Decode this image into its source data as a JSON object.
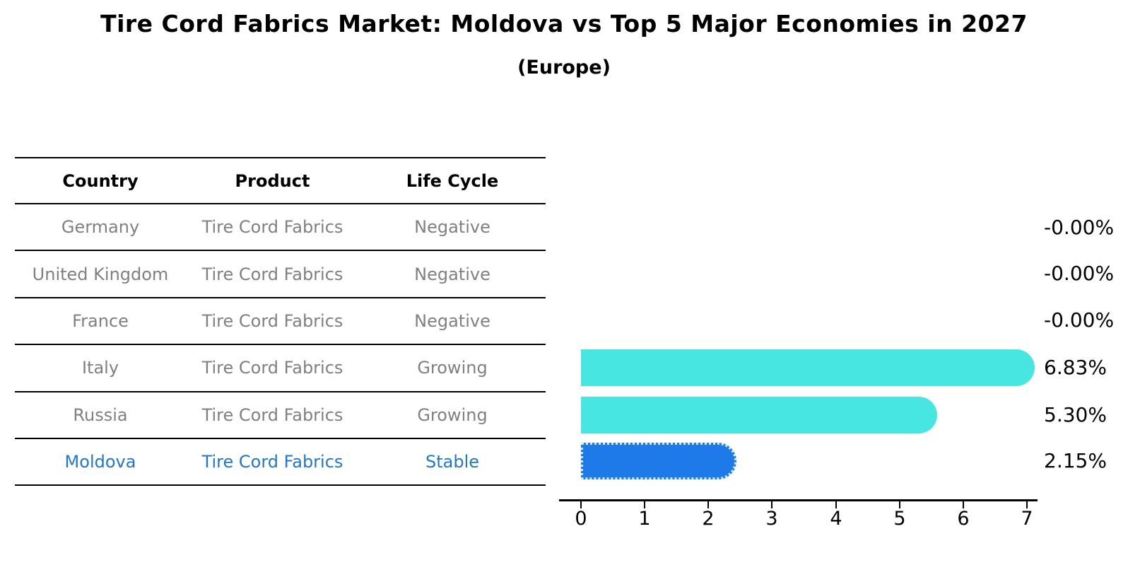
{
  "figure": {
    "title": "Tire Cord Fabrics Market: Moldova vs Top 5 Major Economies in 2027",
    "subtitle": "(Europe)"
  },
  "table": {
    "headers": [
      "Country",
      "Product",
      "Life Cycle"
    ],
    "rows": [
      {
        "country": "Germany",
        "product": "Tire Cord Fabrics",
        "life_cycle": "Negative",
        "highlight": false
      },
      {
        "country": "United Kingdom",
        "product": "Tire Cord Fabrics",
        "life_cycle": "Negative",
        "highlight": false
      },
      {
        "country": "France",
        "product": "Tire Cord Fabrics",
        "life_cycle": "Negative",
        "highlight": false
      },
      {
        "country": "Italy",
        "product": "Tire Cord Fabrics",
        "life_cycle": "Growing",
        "highlight": false
      },
      {
        "country": "Russia",
        "product": "Tire Cord Fabrics",
        "life_cycle": "Growing",
        "highlight": false
      },
      {
        "country": "Moldova",
        "product": "Tire Cord Fabrics",
        "life_cycle": "Stable",
        "highlight": true
      }
    ]
  },
  "chart_data": {
    "type": "bar",
    "orientation": "horizontal",
    "title": "Tire Cord Fabrics Market: Moldova vs Top 5 Major Economies in 2027",
    "subtitle": "(Europe)",
    "categories": [
      "Germany",
      "United Kingdom",
      "France",
      "Italy",
      "Russia",
      "Moldova"
    ],
    "values": [
      -0.0,
      -0.0,
      -0.0,
      6.83,
      5.3,
      2.15
    ],
    "value_labels": [
      "-0.00%",
      "-0.00%",
      "-0.00%",
      "6.83%",
      "5.30%",
      "2.15%"
    ],
    "xlabel": "",
    "ylabel": "",
    "xlim": [
      0,
      7
    ],
    "x_ticks": [
      "0",
      "1",
      "2",
      "3",
      "4",
      "5",
      "6",
      "7"
    ],
    "grid": false,
    "legend": false,
    "highlight_index": 5,
    "colors": {
      "bar_default": "#48e6e0",
      "bar_highlight": "#1e7ae8",
      "bar_highlight_border": "#cfeaf9",
      "highlight_text": "#2277cc",
      "row_text": "#808080",
      "axis_text": "#000000"
    }
  }
}
